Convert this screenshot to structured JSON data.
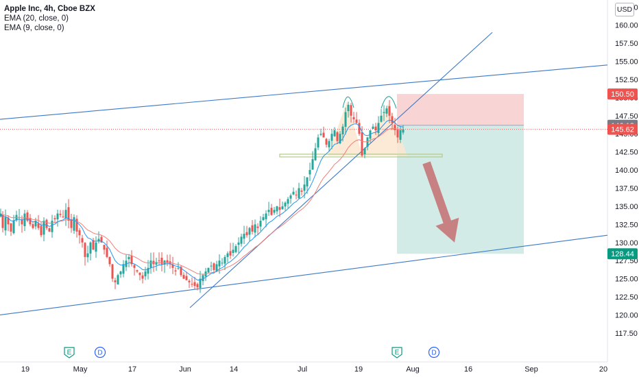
{
  "header": {
    "symbol_title": "Apple Inc, 4h, Cboe BZX",
    "indicators": [
      "EMA (20, close, 0)",
      "EMA (9, close, 0)"
    ],
    "currency": "USD"
  },
  "colors": {
    "up_candle": "#26a69a",
    "down_candle": "#ef5350",
    "ema9": "#2196f3",
    "ema20": "#ef7f7a",
    "trendline": "#3a78c9",
    "stop_zone": "#f8cdcd",
    "target_zone": "#cde9e3",
    "arrow": "#c56e70",
    "support_line": "#b4c98a",
    "pattern_fill": "#fbe6cf",
    "price_current": "#ef5350",
    "price_stop": "#ef5350",
    "price_target": "#089981",
    "price_entry": "#787b86"
  },
  "chart_data": {
    "type": "candlestick",
    "timeframe": "4h",
    "x_ticks": [
      "19",
      "May",
      "17",
      "Jun",
      "14",
      "Jul",
      "19",
      "Aug",
      "16",
      "Sep",
      "20"
    ],
    "y_ticks": [
      "117.50",
      "120.00",
      "122.50",
      "125.00",
      "127.50",
      "130.00",
      "132.50",
      "135.00",
      "137.50",
      "140.00",
      "142.50",
      "145.00",
      "147.50",
      "150.00",
      "152.50",
      "155.00",
      "157.50",
      "160.00",
      "162.50"
    ],
    "ylim": [
      115.5,
      163
    ],
    "price_labels": [
      {
        "text": "150.50",
        "value": 150.5,
        "role": "stop"
      },
      {
        "text": "146.18",
        "value": 146.18,
        "role": "entry"
      },
      {
        "text": "145.62",
        "value": 145.62,
        "role": "current"
      },
      {
        "text": "128.44",
        "value": 128.44,
        "role": "target"
      }
    ],
    "events": [
      {
        "label": "E",
        "date": "Apr 28"
      },
      {
        "label": "D",
        "date": "May 7"
      },
      {
        "label": "E",
        "date": "Jul 27"
      },
      {
        "label": "D",
        "date": "Aug 5"
      }
    ],
    "close_path": [
      [
        1,
        134.0
      ],
      [
        4,
        132.0
      ],
      [
        8,
        133.5
      ],
      [
        12,
        132.5
      ],
      [
        16,
        131.5
      ],
      [
        20,
        133.0
      ],
      [
        24,
        133.8
      ],
      [
        28,
        133.5
      ],
      [
        32,
        132.5
      ],
      [
        36,
        134.0
      ],
      [
        40,
        133.0
      ],
      [
        44,
        132.5
      ],
      [
        48,
        132.0
      ],
      [
        52,
        133.0
      ],
      [
        56,
        132.0
      ],
      [
        60,
        131.0
      ],
      [
        64,
        133.0
      ],
      [
        68,
        132.0
      ],
      [
        72,
        131.5
      ],
      [
        76,
        133.0
      ],
      [
        80,
        133.2
      ],
      [
        84,
        134.0
      ],
      [
        88,
        133.8
      ],
      [
        92,
        133.5
      ],
      [
        96,
        134.5
      ],
      [
        100,
        133.0
      ],
      [
        104,
        132.0
      ],
      [
        108,
        133.5
      ],
      [
        112,
        131.5
      ],
      [
        116,
        131.0
      ],
      [
        120,
        130.0
      ],
      [
        124,
        128.0
      ],
      [
        128,
        128.5
      ],
      [
        132,
        130.0
      ],
      [
        136,
        129.0
      ],
      [
        140,
        130.0
      ],
      [
        144,
        130.5
      ],
      [
        148,
        130.0
      ],
      [
        152,
        129.0
      ],
      [
        156,
        128.0
      ],
      [
        160,
        127.0
      ],
      [
        164,
        125.0
      ],
      [
        168,
        124.5
      ],
      [
        172,
        125.5
      ],
      [
        176,
        126.0
      ],
      [
        180,
        127.0
      ],
      [
        184,
        127.5
      ],
      [
        188,
        128.0
      ],
      [
        192,
        127.0
      ],
      [
        196,
        126.5
      ],
      [
        200,
        126.0
      ],
      [
        204,
        125.5
      ],
      [
        208,
        125.0
      ],
      [
        212,
        126.0
      ],
      [
        216,
        126.5
      ],
      [
        220,
        127.5
      ],
      [
        224,
        127.0
      ],
      [
        228,
        127.3
      ],
      [
        232,
        127.5
      ],
      [
        236,
        127.0
      ],
      [
        240,
        127.5
      ],
      [
        244,
        127.2
      ],
      [
        248,
        127.0
      ],
      [
        252,
        126.5
      ],
      [
        256,
        126.0
      ],
      [
        260,
        126.5
      ],
      [
        264,
        125.5
      ],
      [
        268,
        125.0
      ],
      [
        272,
        124.8
      ],
      [
        276,
        124.5
      ],
      [
        280,
        124.2
      ],
      [
        284,
        124.0
      ],
      [
        288,
        123.8
      ],
      [
        292,
        125.0
      ],
      [
        296,
        125.5
      ],
      [
        300,
        126.0
      ],
      [
        304,
        126.5
      ],
      [
        308,
        126.8
      ],
      [
        312,
        126.2
      ],
      [
        316,
        127.0
      ],
      [
        320,
        127.5
      ],
      [
        324,
        127.2
      ],
      [
        328,
        128.0
      ],
      [
        332,
        128.5
      ],
      [
        336,
        128.2
      ],
      [
        340,
        129.0
      ],
      [
        344,
        129.5
      ],
      [
        348,
        130.0
      ],
      [
        352,
        130.8
      ],
      [
        356,
        131.2
      ],
      [
        360,
        131.0
      ],
      [
        364,
        132.0
      ],
      [
        368,
        131.5
      ],
      [
        372,
        132.5
      ],
      [
        376,
        132.0
      ],
      [
        380,
        133.0
      ],
      [
        384,
        133.5
      ],
      [
        388,
        134.0
      ],
      [
        392,
        134.5
      ],
      [
        396,
        133.8
      ],
      [
        400,
        134.5
      ],
      [
        404,
        135.0
      ],
      [
        408,
        134.5
      ],
      [
        412,
        135.0
      ],
      [
        416,
        135.5
      ],
      [
        420,
        136.0
      ],
      [
        424,
        136.5
      ],
      [
        428,
        137.0
      ],
      [
        432,
        136.5
      ],
      [
        436,
        137.5
      ],
      [
        440,
        137.0
      ],
      [
        444,
        138.0
      ],
      [
        448,
        139.0
      ],
      [
        452,
        140.0
      ],
      [
        456,
        141.5
      ],
      [
        460,
        143.0
      ],
      [
        464,
        144.5
      ],
      [
        468,
        145.0
      ],
      [
        472,
        144.5
      ],
      [
        476,
        143.5
      ],
      [
        480,
        144.0
      ],
      [
        484,
        145.0
      ],
      [
        488,
        145.5
      ],
      [
        492,
        144.0
      ],
      [
        496,
        145.0
      ],
      [
        500,
        146.0
      ],
      [
        504,
        148.0
      ],
      [
        508,
        149.0
      ],
      [
        512,
        147.5
      ],
      [
        516,
        147.0
      ],
      [
        520,
        146.5
      ],
      [
        524,
        145.0
      ],
      [
        528,
        142.0
      ],
      [
        532,
        143.0
      ],
      [
        536,
        144.5
      ],
      [
        540,
        145.5
      ],
      [
        544,
        146.0
      ],
      [
        548,
        145.5
      ],
      [
        552,
        146.5
      ],
      [
        556,
        147.5
      ],
      [
        560,
        148.0
      ],
      [
        564,
        148.5
      ],
      [
        568,
        147.5
      ],
      [
        572,
        146.5
      ],
      [
        576,
        145.5
      ],
      [
        580,
        144.5
      ],
      [
        584,
        145.5
      ],
      [
        588,
        145.6
      ]
    ],
    "overlays": {
      "upper_channel": [
        [
          0,
          147.0
        ],
        [
          886,
          154.5
        ]
      ],
      "lower_channel": [
        [
          0,
          120.0
        ],
        [
          886,
          131.0
        ]
      ],
      "rising_trendline": [
        [
          277,
          121.0
        ],
        [
          718,
          159.0
        ]
      ],
      "stop_zone": {
        "x_start": 579,
        "x_end": 764,
        "y_low": 146.18,
        "y_high": 150.5
      },
      "target_zone": {
        "x_start": 579,
        "x_end": 764,
        "y_low": 128.44,
        "y_high": 146.18
      },
      "support_line": {
        "x_start": 408,
        "x_end": 645,
        "value": 142.0
      },
      "current_price_line": 145.62,
      "arrow": {
        "from": [
          622,
          141.0
        ],
        "to": [
          663,
          130.0
        ]
      }
    }
  }
}
